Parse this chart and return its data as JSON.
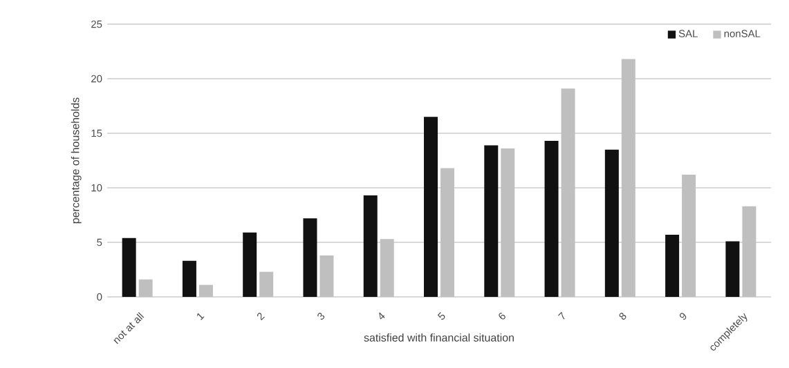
{
  "chart_data": {
    "type": "bar",
    "categories": [
      "not at all",
      "1",
      "2",
      "3",
      "4",
      "5",
      "6",
      "7",
      "8",
      "9",
      "completely"
    ],
    "series": [
      {
        "name": "SAL",
        "color": "#111111",
        "values": [
          5.4,
          3.3,
          5.9,
          7.2,
          9.3,
          16.5,
          13.9,
          14.3,
          13.5,
          5.7,
          5.1
        ]
      },
      {
        "name": "nonSAL",
        "color": "#bfbfbf",
        "values": [
          1.6,
          1.1,
          2.3,
          3.8,
          5.3,
          11.8,
          13.6,
          19.1,
          21.8,
          11.2,
          8.3
        ]
      }
    ],
    "xlabel": "satisfied with financial situation",
    "ylabel": "percentage of households",
    "ylim": [
      0,
      25
    ],
    "yticks": [
      0,
      5,
      10,
      15,
      20,
      25
    ],
    "grid": "y",
    "legend": "top right"
  }
}
